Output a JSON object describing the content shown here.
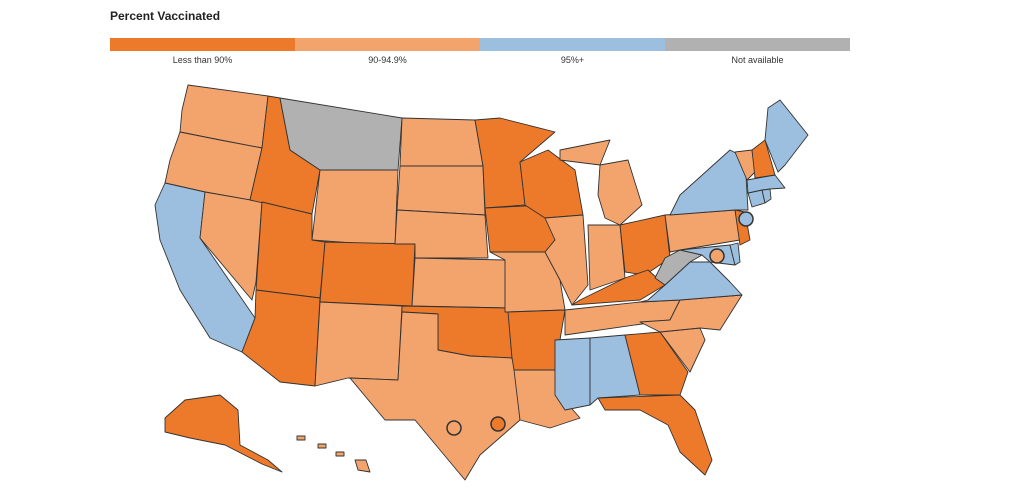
{
  "title": "Percent Vaccinated",
  "legend": [
    {
      "label": "Less than 90%",
      "color": "#ec7a2a"
    },
    {
      "label": "90-94.9%",
      "color": "#f3a46d"
    },
    {
      "label": "95%+",
      "color": "#9dbfdf"
    },
    {
      "label": "Not available",
      "color": "#b1b1b1"
    }
  ],
  "category_colors": {
    "lt90": "#ec7a2a",
    "c90_94": "#f3a46d",
    "ge95": "#9dbfdf",
    "na": "#b1b1b1"
  },
  "states": {
    "WA": "c90_94",
    "OR": "c90_94",
    "CA": "ge95",
    "NV": "c90_94",
    "ID": "lt90",
    "MT": "na",
    "WY": "c90_94",
    "UT": "lt90",
    "AZ": "lt90",
    "CO": "lt90",
    "NM": "c90_94",
    "ND": "c90_94",
    "SD": "c90_94",
    "NE": "c90_94",
    "KS": "c90_94",
    "OK": "lt90",
    "TX": "c90_94",
    "MN": "lt90",
    "IA": "lt90",
    "MO": "c90_94",
    "AR": "lt90",
    "LA": "c90_94",
    "WI": "lt90",
    "IL": "c90_94",
    "MI": "c90_94",
    "IN": "c90_94",
    "OH": "lt90",
    "KY": "lt90",
    "TN": "c90_94",
    "MS": "ge95",
    "AL": "ge95",
    "GA": "lt90",
    "FL": "lt90",
    "SC": "c90_94",
    "NC": "c90_94",
    "VA": "ge95",
    "WV": "na",
    "MD": "ge95",
    "DE": "ge95",
    "PA": "c90_94",
    "NJ": "lt90",
    "NY": "ge95",
    "CT": "ge95",
    "RI": "ge95",
    "MA": "ge95",
    "VT": "c90_94",
    "NH": "lt90",
    "ME": "ge95",
    "AK": "lt90",
    "HI": "c90_94"
  },
  "cities": {
    "NYC": "ge95",
    "DC": "c90_94",
    "San Antonio": "c90_94",
    "Houston": "lt90"
  }
}
